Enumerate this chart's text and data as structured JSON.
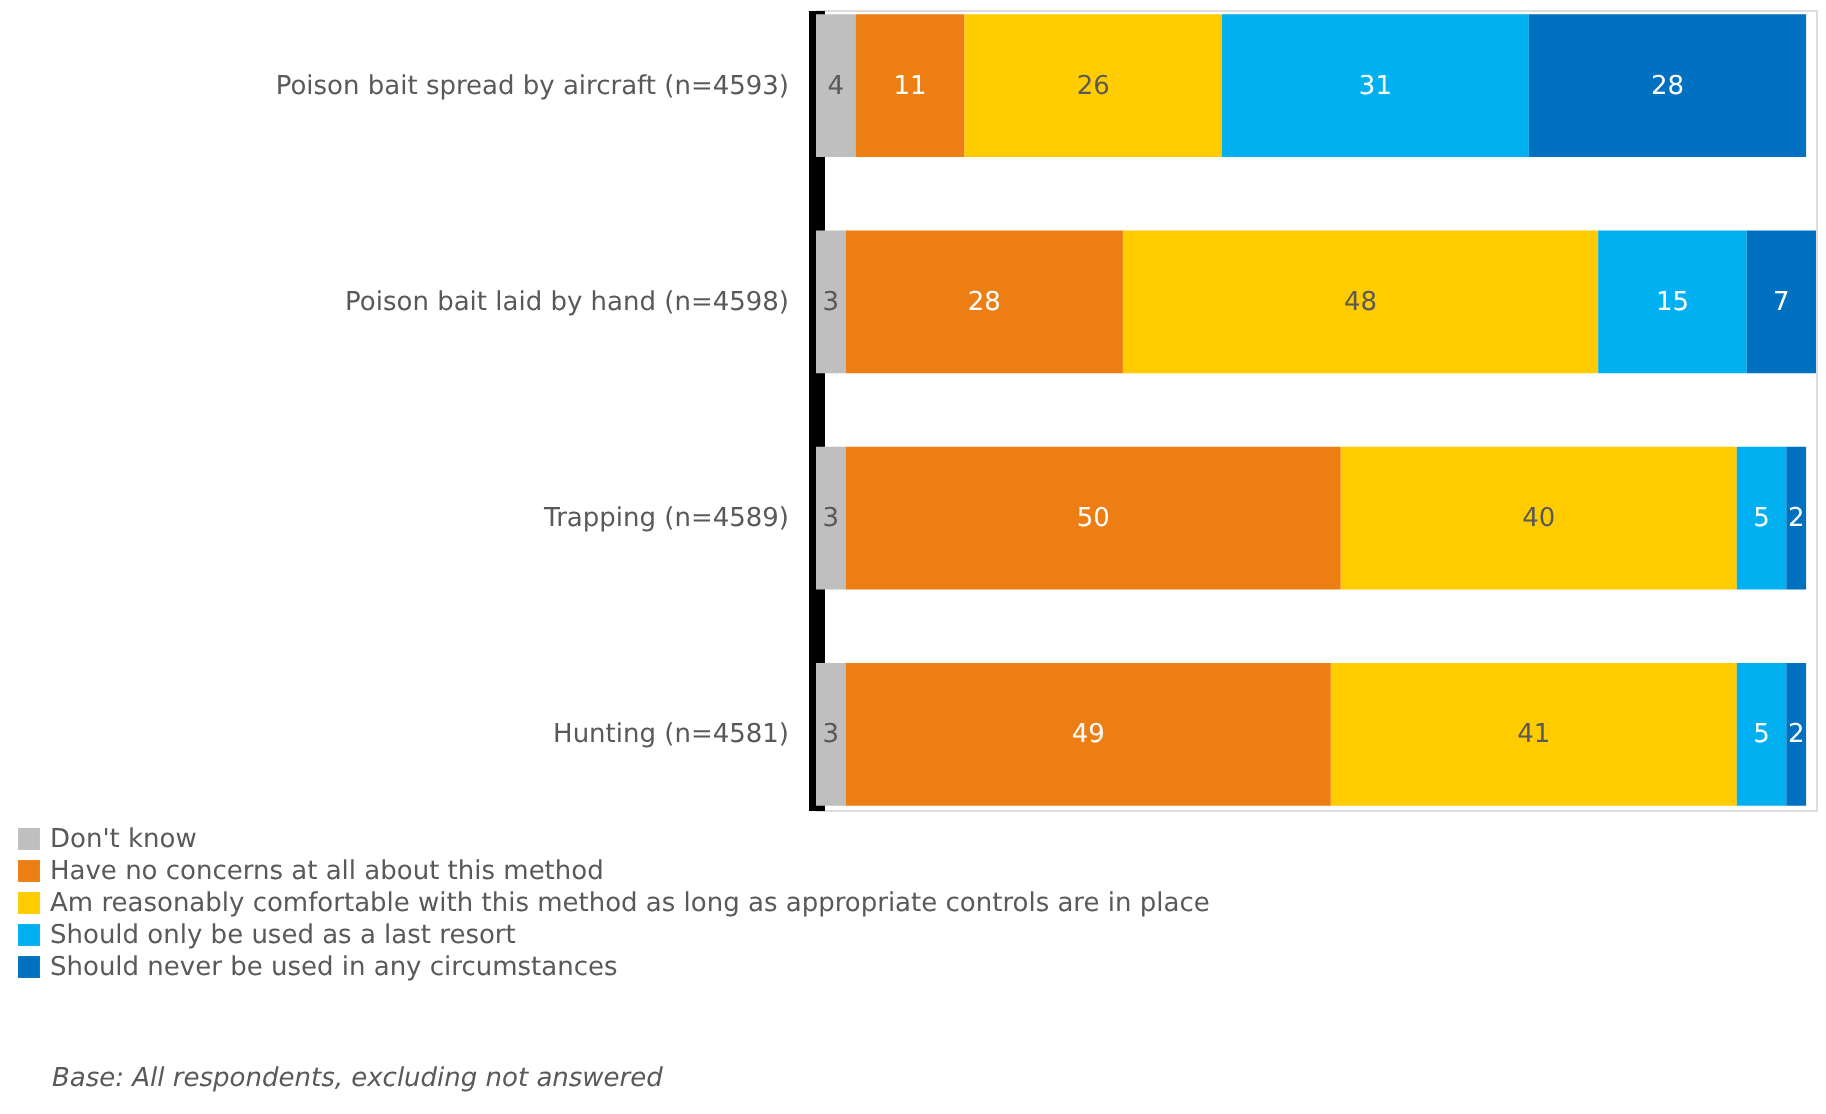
{
  "chart_data": {
    "type": "bar",
    "orientation": "horizontal",
    "stacked": true,
    "data_labels": true,
    "tick_labels": "y",
    "legend": "bottom",
    "grid": false,
    "categories": [
      "Poison bait spread by aircraft (n=4593)",
      "Poison bait laid by hand (n=4598)",
      "Trapping (n=4589)",
      "Hunting (n=4581)"
    ],
    "series": [
      {
        "name": "Don't know",
        "color": "#bfbfbf",
        "values": [
          4,
          3,
          3,
          3
        ]
      },
      {
        "name": "Have no concerns at all about this method",
        "color": "#ec7e14",
        "values": [
          11,
          28,
          50,
          49
        ]
      },
      {
        "name": "Am reasonably comfortable with this method as long as appropriate controls are in place",
        "color": "#ffcc00",
        "values": [
          26,
          48,
          40,
          41
        ]
      },
      {
        "name": "Should only be used as a last resort",
        "color": "#00b0f0",
        "values": [
          31,
          15,
          5,
          5
        ]
      },
      {
        "name": "Should never be used in any circumstances",
        "color": "#0070c0",
        "values": [
          28,
          7,
          2,
          2
        ]
      }
    ],
    "annotations": [
      "Base: All respondents, excluding not answered"
    ]
  }
}
